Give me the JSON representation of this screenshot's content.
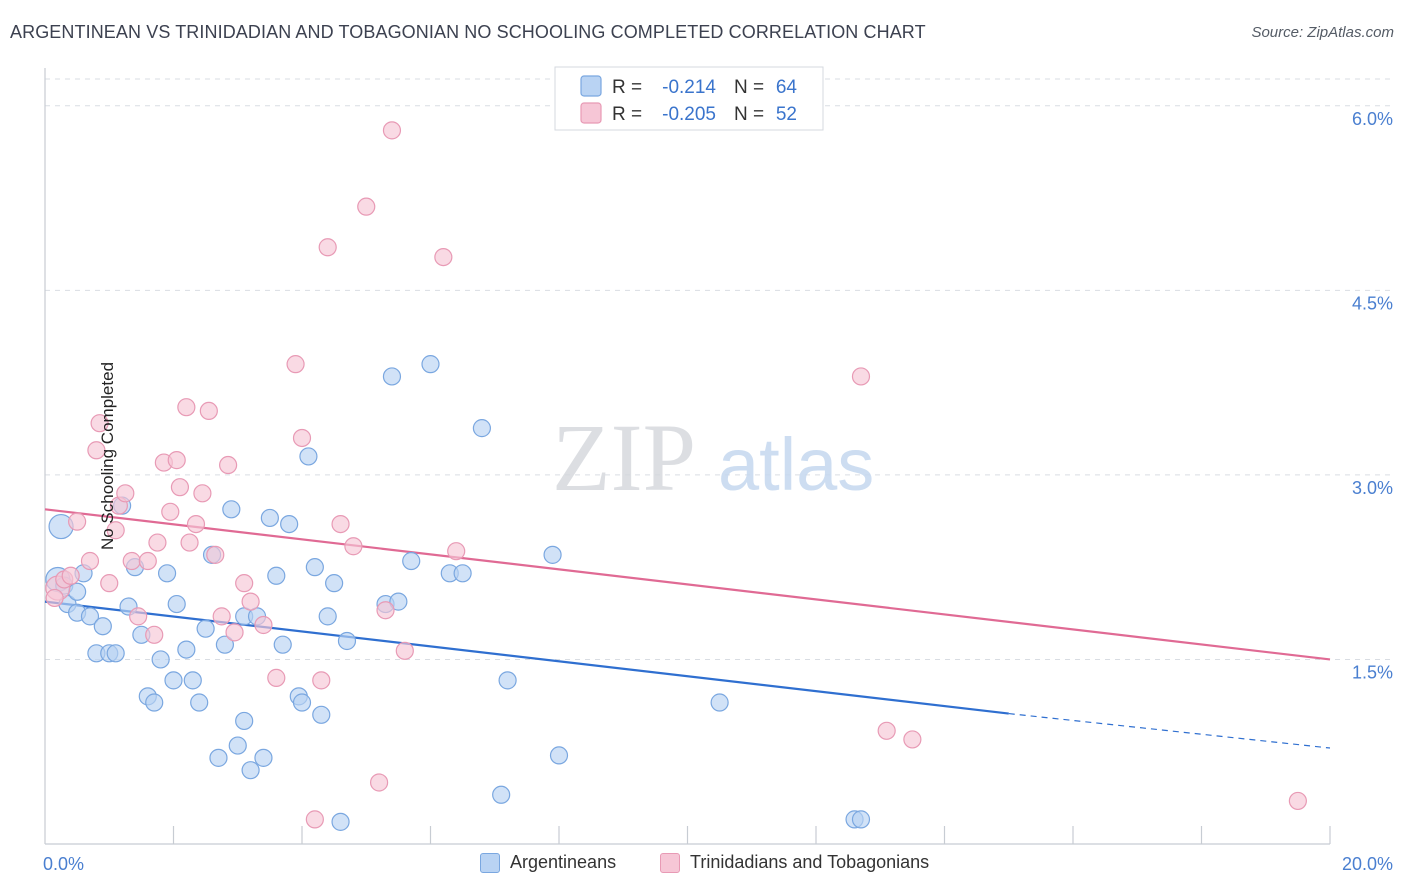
{
  "header": {
    "title": "ARGENTINEAN VS TRINIDADIAN AND TOBAGONIAN NO SCHOOLING COMPLETED CORRELATION CHART",
    "source": "Source: ZipAtlas.com"
  },
  "chart_data": {
    "type": "scatter",
    "ylabel": "No Schooling Completed",
    "xlabel": "",
    "xlim": [
      0,
      20
    ],
    "ylim": [
      0,
      6.25
    ],
    "x_tick_labels": [
      "0.0%",
      "20.0%"
    ],
    "y_ticks": [
      1.5,
      3.0,
      4.5,
      6.0
    ],
    "y_tick_labels": [
      "1.5%",
      "3.0%",
      "4.5%",
      "6.0%"
    ],
    "grid": "horizontal dashed",
    "watermark": {
      "zip": "ZIP",
      "atlas": "atlas"
    },
    "legend_top": [
      {
        "r_label": "R =",
        "r_value": "-0.214",
        "n_label": "N =",
        "n_value": "64"
      },
      {
        "r_label": "R =",
        "r_value": "-0.205",
        "n_label": "N =",
        "n_value": "52"
      }
    ],
    "series": [
      {
        "name": "Argentineans",
        "color": "#7aa7e0",
        "fill": "#b9d3f3",
        "line_color": "#2f6fd0",
        "trend": {
          "x0": 0,
          "y0": 1.97,
          "x1": 15,
          "y1": 1.06,
          "dash_to_x": 20,
          "dash_to_y": 0.78
        },
        "points": [
          [
            0.2,
            2.15
          ],
          [
            0.25,
            2.58
          ],
          [
            0.3,
            2.1
          ],
          [
            0.35,
            1.95
          ],
          [
            0.5,
            2.05
          ],
          [
            0.6,
            2.2
          ],
          [
            0.5,
            1.88
          ],
          [
            0.7,
            1.85
          ],
          [
            0.8,
            1.55
          ],
          [
            0.9,
            1.77
          ],
          [
            1.0,
            1.55
          ],
          [
            1.1,
            1.55
          ],
          [
            1.2,
            2.75
          ],
          [
            1.3,
            1.93
          ],
          [
            1.4,
            2.25
          ],
          [
            1.5,
            1.7
          ],
          [
            1.6,
            1.2
          ],
          [
            1.7,
            1.15
          ],
          [
            1.8,
            1.5
          ],
          [
            1.9,
            2.2
          ],
          [
            2.0,
            1.33
          ],
          [
            2.05,
            1.95
          ],
          [
            2.2,
            1.58
          ],
          [
            2.3,
            1.33
          ],
          [
            2.4,
            1.15
          ],
          [
            2.5,
            1.75
          ],
          [
            2.6,
            2.35
          ],
          [
            2.7,
            0.7
          ],
          [
            2.8,
            1.62
          ],
          [
            2.9,
            2.72
          ],
          [
            3.0,
            0.8
          ],
          [
            3.1,
            1.0
          ],
          [
            3.1,
            1.85
          ],
          [
            3.2,
            0.6
          ],
          [
            3.3,
            1.85
          ],
          [
            3.4,
            0.7
          ],
          [
            3.5,
            2.65
          ],
          [
            3.6,
            2.18
          ],
          [
            3.7,
            1.62
          ],
          [
            3.8,
            2.6
          ],
          [
            3.95,
            1.2
          ],
          [
            4.0,
            1.15
          ],
          [
            4.1,
            3.15
          ],
          [
            4.2,
            2.25
          ],
          [
            4.3,
            1.05
          ],
          [
            4.4,
            1.85
          ],
          [
            4.5,
            2.12
          ],
          [
            4.6,
            0.18
          ],
          [
            4.7,
            1.65
          ],
          [
            5.3,
            1.95
          ],
          [
            5.4,
            3.8
          ],
          [
            5.5,
            1.97
          ],
          [
            5.7,
            2.3
          ],
          [
            6.0,
            3.9
          ],
          [
            6.3,
            2.2
          ],
          [
            6.5,
            2.2
          ],
          [
            6.8,
            3.38
          ],
          [
            7.1,
            0.4
          ],
          [
            7.2,
            1.33
          ],
          [
            7.9,
            2.35
          ],
          [
            8.0,
            0.72
          ],
          [
            10.5,
            1.15
          ],
          [
            12.6,
            0.2
          ],
          [
            12.7,
            0.2
          ]
        ]
      },
      {
        "name": "Trinidadians and Tobagonians",
        "color": "#e89ab5",
        "fill": "#f6c6d6",
        "line_color": "#e06a94",
        "trend": {
          "x0": 0,
          "y0": 2.72,
          "x1": 20,
          "y1": 1.5
        },
        "points": [
          [
            0.2,
            2.08
          ],
          [
            0.3,
            2.15
          ],
          [
            0.5,
            2.62
          ],
          [
            0.7,
            2.3
          ],
          [
            0.8,
            3.2
          ],
          [
            0.85,
            3.42
          ],
          [
            1.0,
            2.12
          ],
          [
            1.1,
            2.55
          ],
          [
            1.15,
            2.75
          ],
          [
            1.25,
            2.85
          ],
          [
            1.35,
            2.3
          ],
          [
            1.45,
            1.85
          ],
          [
            1.6,
            2.3
          ],
          [
            1.7,
            1.7
          ],
          [
            1.75,
            2.45
          ],
          [
            1.85,
            3.1
          ],
          [
            1.95,
            2.7
          ],
          [
            2.05,
            3.12
          ],
          [
            2.1,
            2.9
          ],
          [
            2.2,
            3.55
          ],
          [
            2.25,
            2.45
          ],
          [
            2.35,
            2.6
          ],
          [
            2.45,
            2.85
          ],
          [
            2.55,
            3.52
          ],
          [
            2.65,
            2.35
          ],
          [
            2.75,
            1.85
          ],
          [
            2.85,
            3.08
          ],
          [
            2.95,
            1.72
          ],
          [
            3.1,
            2.12
          ],
          [
            3.2,
            1.97
          ],
          [
            3.4,
            1.78
          ],
          [
            3.6,
            1.35
          ],
          [
            3.9,
            3.9
          ],
          [
            4.0,
            3.3
          ],
          [
            4.2,
            0.2
          ],
          [
            4.3,
            1.33
          ],
          [
            4.4,
            4.85
          ],
          [
            4.6,
            2.6
          ],
          [
            4.8,
            2.42
          ],
          [
            5.0,
            5.18
          ],
          [
            5.2,
            0.5
          ],
          [
            5.3,
            1.9
          ],
          [
            5.4,
            5.8
          ],
          [
            5.6,
            1.57
          ],
          [
            6.2,
            4.77
          ],
          [
            6.4,
            2.38
          ],
          [
            12.7,
            3.8
          ],
          [
            13.1,
            0.92
          ],
          [
            13.5,
            0.85
          ],
          [
            19.5,
            0.35
          ],
          [
            0.15,
            2.0
          ],
          [
            0.4,
            2.18
          ]
        ]
      }
    ]
  },
  "legend_bottom": {
    "items": [
      {
        "label": "Argentineans",
        "fill": "#b9d3f3",
        "stroke": "#7aa7e0"
      },
      {
        "label": "Trinidadians and Tobagonians",
        "fill": "#f6c6d6",
        "stroke": "#e89ab5"
      }
    ]
  }
}
